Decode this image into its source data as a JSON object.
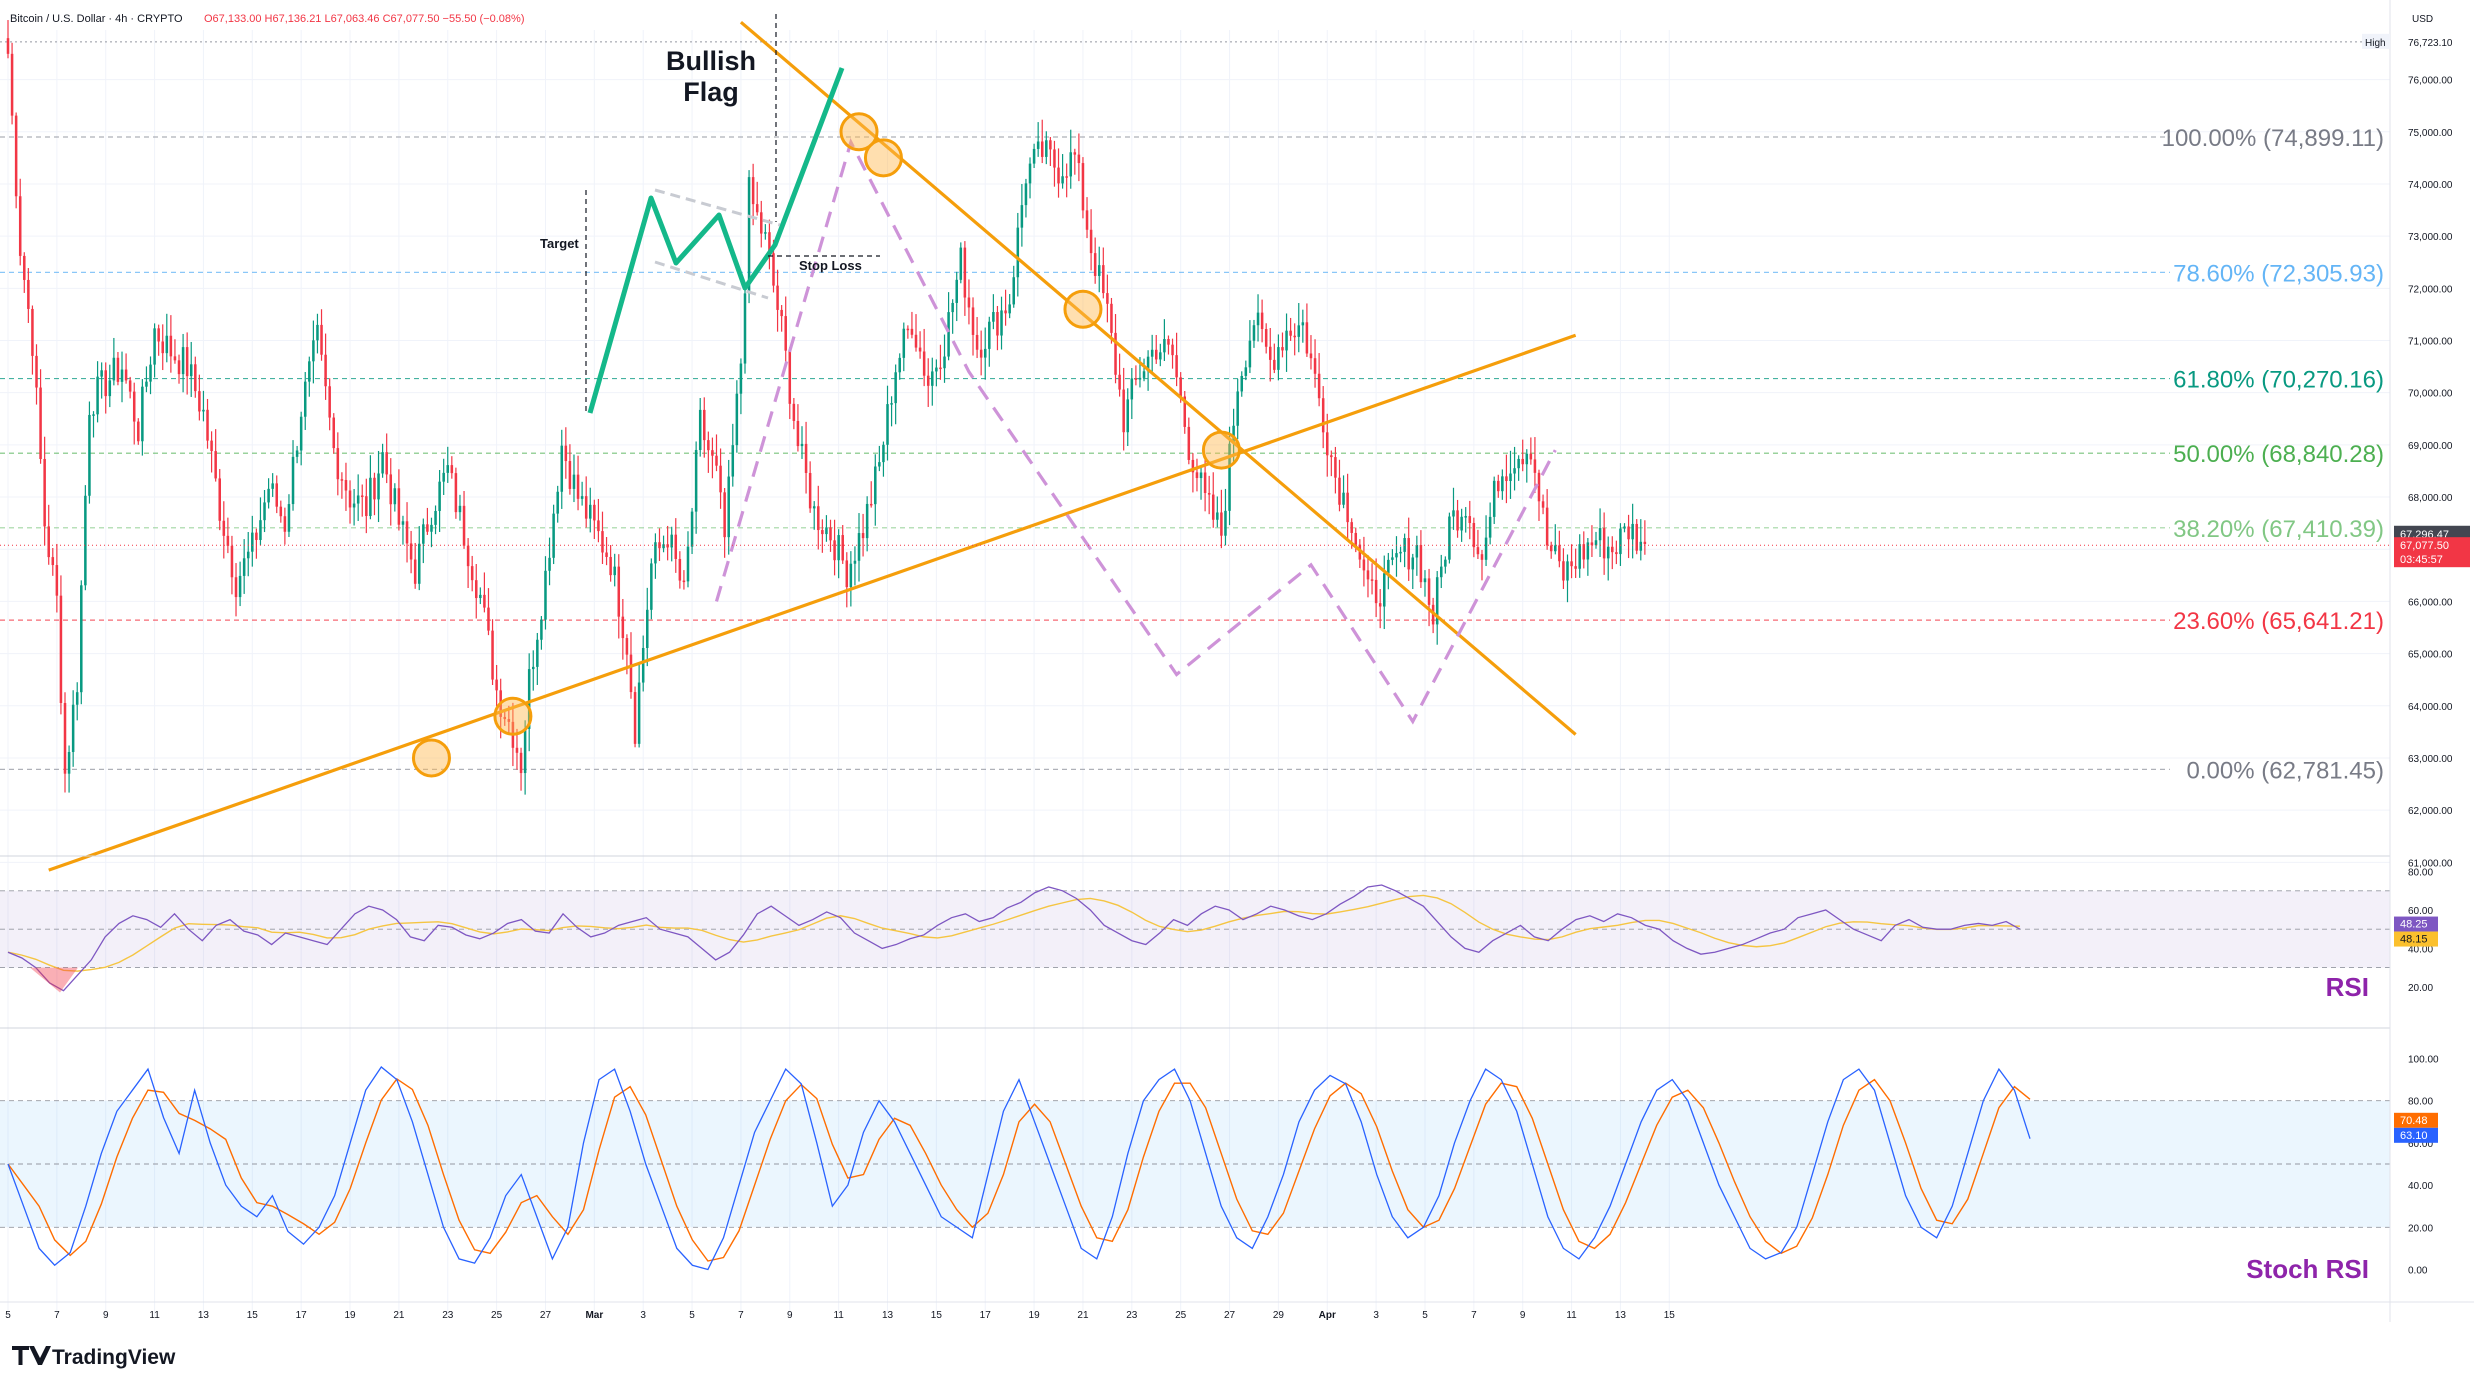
{
  "header": {
    "symbol": "Bitcoin / U.S. Dollar · 4h · CRYPTO",
    "ohlc": "O67,133.00 H67,136.21 L67,063.46 C67,077.50 −55.50 (−0.08%)"
  },
  "currency": "USD",
  "brand": "TradingView",
  "colors": {
    "up": "#089981",
    "down": "#f23645",
    "trendline": "#f59e0b",
    "channel": "#ce93d8",
    "flag": "#14b88a",
    "rsi": "#7e57c2",
    "rsi_ma": "#f5c542",
    "stoch_k": "#2962ff",
    "stoch_d": "#ff6d00",
    "panel_title": "#8e24aa"
  },
  "chart_data": {
    "type": "candlestick",
    "timeframe": "4h",
    "x_ticks": [
      "5",
      "7",
      "9",
      "11",
      "13",
      "15",
      "17",
      "19",
      "21",
      "23",
      "25",
      "27",
      "Mar",
      "3",
      "5",
      "7",
      "9",
      "11",
      "13",
      "15",
      "17",
      "19",
      "21",
      "23",
      "25",
      "27",
      "29",
      "Apr",
      "3",
      "5",
      "7",
      "9",
      "11",
      "13",
      "15"
    ],
    "y_ticks": [
      "61,000.00",
      "62,000.00",
      "63,000.00",
      "64,000.00",
      "65,000.00",
      "66,000.00",
      "67,000.00",
      "68,000.00",
      "69,000.00",
      "70,000.00",
      "71,000.00",
      "72,000.00",
      "73,000.00",
      "74,000.00",
      "75,000.00",
      "76,000.00"
    ],
    "ylim": [
      60700,
      76950
    ],
    "high_label": "High",
    "high_value": "76,723.10",
    "last_price": "67,296.47",
    "current_close": "67,077.50",
    "countdown": "03:45:57",
    "close_path": [
      [
        0,
        76500
      ],
      [
        3,
        72800
      ],
      [
        6,
        71000
      ],
      [
        9,
        67500
      ],
      [
        12,
        66000
      ],
      [
        14,
        62700
      ],
      [
        17,
        64500
      ],
      [
        20,
        69800
      ],
      [
        24,
        70200
      ],
      [
        28,
        70500
      ],
      [
        32,
        69300
      ],
      [
        36,
        71200
      ],
      [
        40,
        70800
      ],
      [
        44,
        70500
      ],
      [
        48,
        69600
      ],
      [
        52,
        67800
      ],
      [
        56,
        66400
      ],
      [
        60,
        67000
      ],
      [
        64,
        68200
      ],
      [
        68,
        67500
      ],
      [
        72,
        69700
      ],
      [
        76,
        71000
      ],
      [
        80,
        68900
      ],
      [
        84,
        68000
      ],
      [
        88,
        67800
      ],
      [
        92,
        68800
      ],
      [
        96,
        67500
      ],
      [
        100,
        66600
      ],
      [
        104,
        67800
      ],
      [
        108,
        68500
      ],
      [
        112,
        67300
      ],
      [
        116,
        66100
      ],
      [
        120,
        64300
      ],
      [
        124,
        63500
      ],
      [
        126,
        62900
      ],
      [
        128,
        64500
      ],
      [
        132,
        66500
      ],
      [
        136,
        69000
      ],
      [
        140,
        68000
      ],
      [
        144,
        67400
      ],
      [
        148,
        66800
      ],
      [
        152,
        65200
      ],
      [
        154,
        63600
      ],
      [
        158,
        66700
      ],
      [
        162,
        67300
      ],
      [
        166,
        66100
      ],
      [
        170,
        69400
      ],
      [
        174,
        68400
      ],
      [
        176,
        67200
      ],
      [
        180,
        70600
      ],
      [
        182,
        73800
      ],
      [
        186,
        72900
      ],
      [
        190,
        71200
      ],
      [
        194,
        69000
      ],
      [
        198,
        67700
      ],
      [
        202,
        67300
      ],
      [
        206,
        66600
      ],
      [
        210,
        67400
      ],
      [
        214,
        68600
      ],
      [
        218,
        70500
      ],
      [
        222,
        71400
      ],
      [
        226,
        70200
      ],
      [
        230,
        71000
      ],
      [
        234,
        72500
      ],
      [
        238,
        70900
      ],
      [
        242,
        71300
      ],
      [
        246,
        71800
      ],
      [
        250,
        74200
      ],
      [
        254,
        74600
      ],
      [
        258,
        74300
      ],
      [
        262,
        74500
      ],
      [
        266,
        72800
      ],
      [
        270,
        71500
      ],
      [
        274,
        69500
      ],
      [
        278,
        70400
      ],
      [
        282,
        70900
      ],
      [
        286,
        70700
      ],
      [
        290,
        69000
      ],
      [
        294,
        67900
      ],
      [
        298,
        67300
      ],
      [
        302,
        70200
      ],
      [
        306,
        71400
      ],
      [
        310,
        70600
      ],
      [
        314,
        71200
      ],
      [
        318,
        71300
      ],
      [
        322,
        69900
      ],
      [
        326,
        68400
      ],
      [
        330,
        67600
      ],
      [
        334,
        66100
      ],
      [
        338,
        66300
      ],
      [
        342,
        66900
      ],
      [
        346,
        67000
      ],
      [
        350,
        65700
      ],
      [
        354,
        67500
      ],
      [
        358,
        67900
      ],
      [
        362,
        66800
      ],
      [
        366,
        68400
      ],
      [
        370,
        68800
      ],
      [
        374,
        69000
      ],
      [
        378,
        67100
      ],
      [
        382,
        66500
      ],
      [
        386,
        66900
      ],
      [
        390,
        67200
      ],
      [
        394,
        67000
      ],
      [
        398,
        67400
      ],
      [
        402,
        67100
      ]
    ],
    "fib_levels": [
      {
        "label": "100.00% (74,899.11)",
        "value": 74899.11,
        "color": "#787b86"
      },
      {
        "label": "78.60% (72,305.93)",
        "value": 72305.93,
        "color": "#64b5f6"
      },
      {
        "label": "61.80% (70,270.16)",
        "value": 70270.16,
        "color": "#089981"
      },
      {
        "label": "50.00% (68,840.28)",
        "value": 68840.28,
        "color": "#4caf50"
      },
      {
        "label": "38.20% (67,410.39)",
        "value": 67410.39,
        "color": "#81c784"
      },
      {
        "label": "23.60% (65,641.21)",
        "value": 65641.21,
        "color": "#f23645"
      },
      {
        "label": "0.00% (62,781.45)",
        "value": 62781.45,
        "color": "#787b86"
      }
    ],
    "trendlines": {
      "support": [
        [
          10,
          60850
        ],
        [
          385,
          71100
        ]
      ],
      "resistance": [
        [
          180,
          77100
        ],
        [
          385,
          63450
        ]
      ]
    },
    "touch_points": [
      [
        104,
        63000
      ],
      [
        124,
        63800
      ],
      [
        209,
        75000
      ],
      [
        215,
        74500
      ],
      [
        264,
        71600
      ],
      [
        298,
        68900
      ]
    ],
    "channel": [
      [
        174,
        66000
      ],
      [
        207,
        74800
      ],
      [
        236,
        70400
      ],
      [
        287,
        64600
      ],
      [
        320,
        66700
      ],
      [
        345,
        63700
      ],
      [
        380,
        68900
      ]
    ],
    "annotation": {
      "title": "Bullish Flag",
      "target_label": "Target",
      "stoploss_label": "Stop Loss"
    },
    "rsi": {
      "title": "RSI",
      "value": "48.25",
      "ma_value": "48.15",
      "ticks": [
        "80.00",
        "60.00",
        "40.00",
        "20.00"
      ],
      "ylim": [
        10,
        85
      ],
      "band": [
        30,
        70
      ],
      "values": [
        38,
        35,
        30,
        22,
        18,
        26,
        34,
        46,
        53,
        57,
        55,
        51,
        58,
        50,
        44,
        52,
        55,
        49,
        47,
        42,
        48,
        46,
        44,
        42,
        50,
        58,
        62,
        60,
        55,
        46,
        44,
        52,
        51,
        47,
        45,
        48,
        53,
        55,
        49,
        48,
        58,
        51,
        46,
        48,
        52,
        54,
        56,
        50,
        48,
        46,
        40,
        34,
        38,
        47,
        58,
        62,
        57,
        52,
        55,
        59,
        56,
        48,
        44,
        40,
        42,
        45,
        47,
        52,
        56,
        58,
        54,
        56,
        61,
        64,
        69,
        72,
        70,
        66,
        60,
        52,
        48,
        44,
        42,
        48,
        55,
        52,
        58,
        62,
        60,
        55,
        58,
        62,
        60,
        57,
        55,
        58,
        63,
        67,
        72,
        73,
        70,
        66,
        62,
        54,
        46,
        40,
        38,
        44,
        48,
        52,
        46,
        44,
        50,
        55,
        57,
        54,
        58,
        56,
        52,
        50,
        44,
        40,
        37,
        38,
        40,
        42,
        45,
        48,
        50,
        56,
        58,
        60,
        55,
        50,
        47,
        44,
        52,
        55,
        51,
        50,
        50,
        52,
        53,
        52,
        54,
        50
      ]
    },
    "stoch_rsi": {
      "title": "Stoch RSI",
      "k_value": "63.10",
      "d_value": "70.48",
      "ticks": [
        "100.00",
        "80.00",
        "60.00",
        "40.00",
        "20.00",
        "0.00"
      ],
      "ylim": [
        -5,
        105
      ],
      "band": [
        20,
        80
      ],
      "k_values": [
        50,
        30,
        10,
        2,
        8,
        30,
        55,
        75,
        85,
        95,
        72,
        55,
        85,
        60,
        40,
        30,
        25,
        35,
        18,
        12,
        20,
        35,
        60,
        85,
        96,
        90,
        70,
        45,
        20,
        5,
        3,
        15,
        35,
        45,
        25,
        5,
        20,
        60,
        90,
        95,
        75,
        50,
        30,
        10,
        2,
        0,
        15,
        40,
        65,
        80,
        95,
        88,
        60,
        30,
        40,
        65,
        80,
        70,
        55,
        40,
        25,
        20,
        15,
        45,
        75,
        90,
        70,
        50,
        30,
        10,
        5,
        25,
        55,
        80,
        90,
        95,
        80,
        55,
        30,
        15,
        10,
        25,
        45,
        70,
        85,
        92,
        88,
        70,
        45,
        25,
        15,
        20,
        35,
        60,
        80,
        95,
        90,
        75,
        50,
        25,
        10,
        5,
        15,
        30,
        50,
        70,
        85,
        90,
        80,
        60,
        40,
        25,
        10,
        5,
        8,
        20,
        45,
        70,
        90,
        95,
        85,
        60,
        35,
        20,
        15,
        30,
        55,
        80,
        95,
        85,
        62
      ]
    }
  }
}
